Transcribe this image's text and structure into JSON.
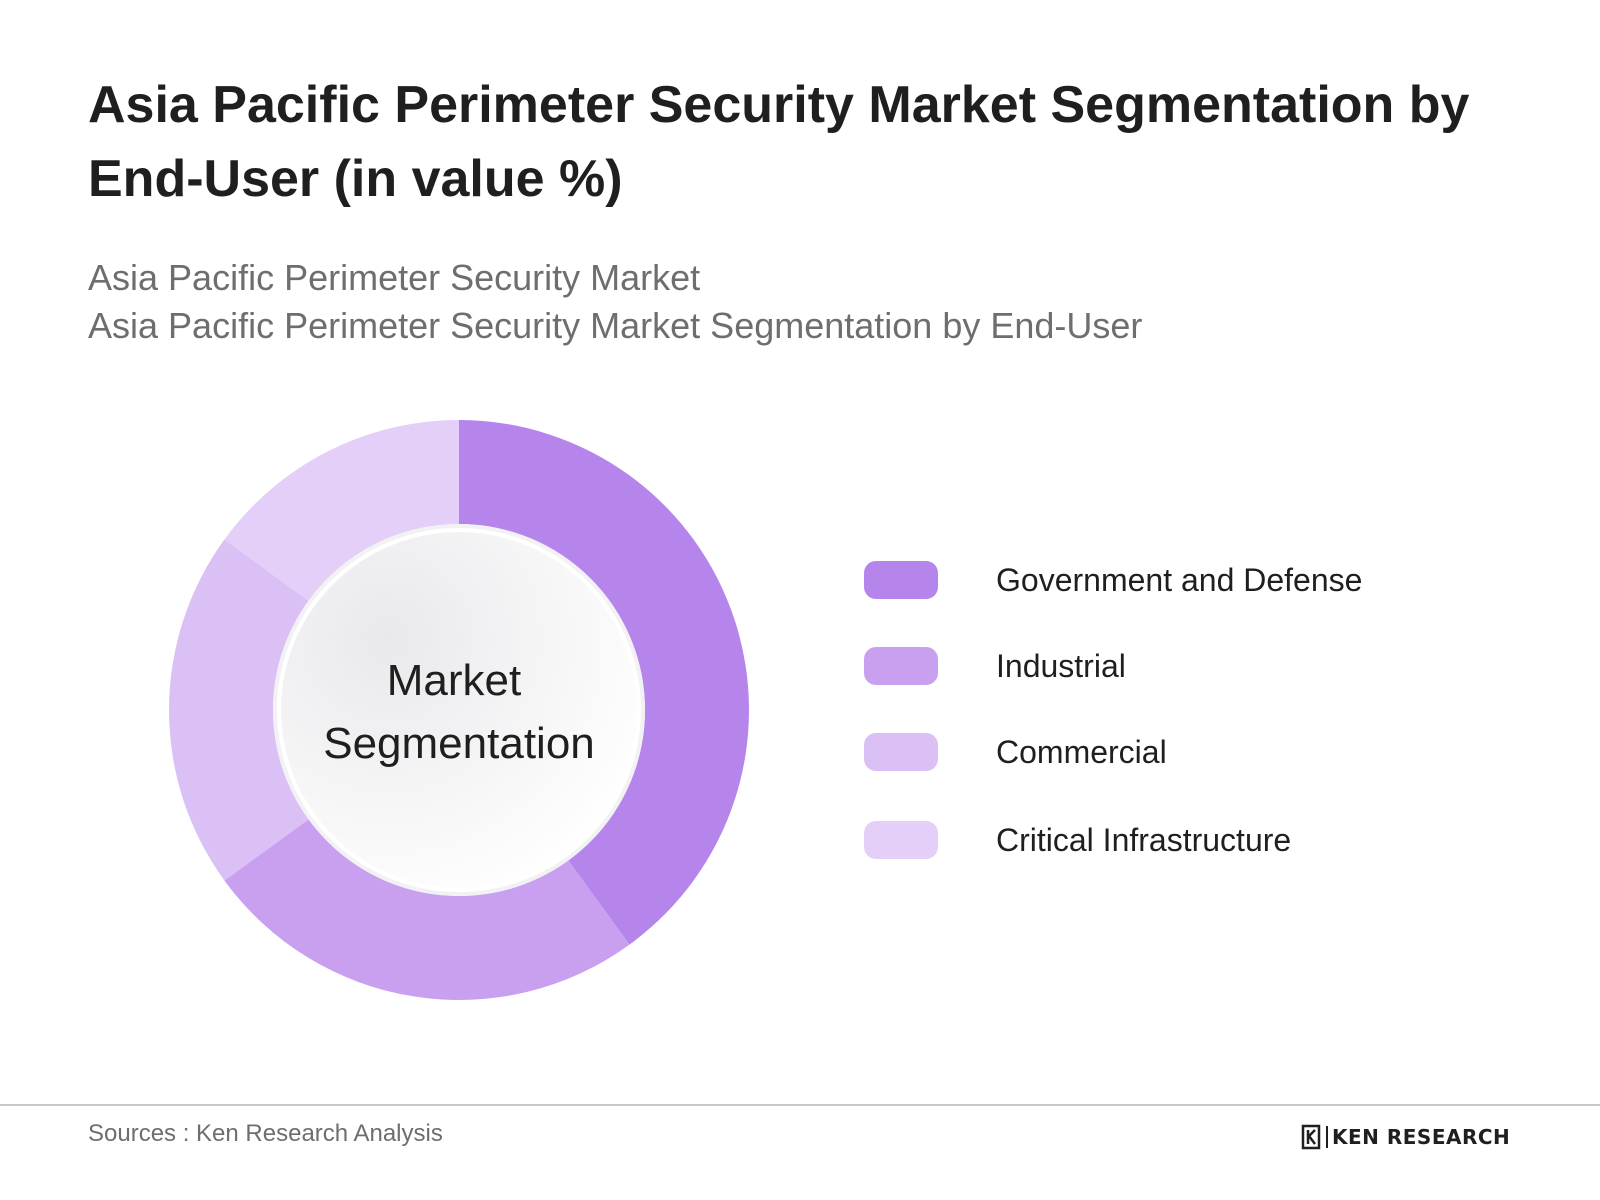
{
  "title": "Asia Pacific Perimeter Security Market Segmentation by End-User (in value %)",
  "subtitle_lines": [
    "Asia Pacific Perimeter Security Market",
    "Asia Pacific Perimeter Security Market Segmentation by End-User"
  ],
  "chart_data": {
    "type": "pie",
    "donut": true,
    "center_label_lines": [
      "Market",
      "Segmentation"
    ],
    "legend_position": "right",
    "series": [
      {
        "name": "Government and Defense",
        "value": 40,
        "color": "#b585ec"
      },
      {
        "name": "Industrial",
        "value": 25,
        "color": "#c9a0ef"
      },
      {
        "name": "Commercial",
        "value": 20,
        "color": "#dbc0f6"
      },
      {
        "name": "Critical Infrastructure",
        "value": 15,
        "color": "#e4cff8"
      }
    ]
  },
  "footer": {
    "sources": "Sources : Ken Research Analysis",
    "logo_text": "KEN RESEARCH",
    "logo_mark": "K"
  }
}
